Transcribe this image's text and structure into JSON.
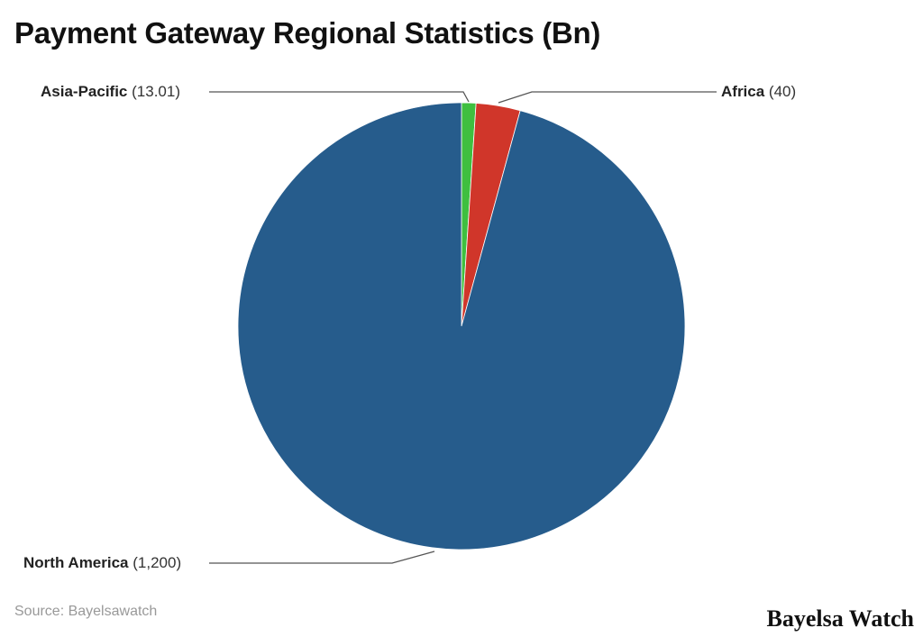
{
  "chart_data": {
    "type": "pie",
    "title": "Payment Gateway Regional Statistics (Bn)",
    "categories": [
      "Asia-Pacific",
      "Africa",
      "North America"
    ],
    "values": [
      13.01,
      40,
      1200
    ],
    "value_labels": [
      "(13.01)",
      "(40)",
      "(1,200)"
    ],
    "colors": [
      "#3fbf3f",
      "#d0362a",
      "#265c8c"
    ],
    "start_angle_deg": 0,
    "direction": "clockwise"
  },
  "source": "Source: Bayelsawatch",
  "brand": "Bayelsa Watch"
}
